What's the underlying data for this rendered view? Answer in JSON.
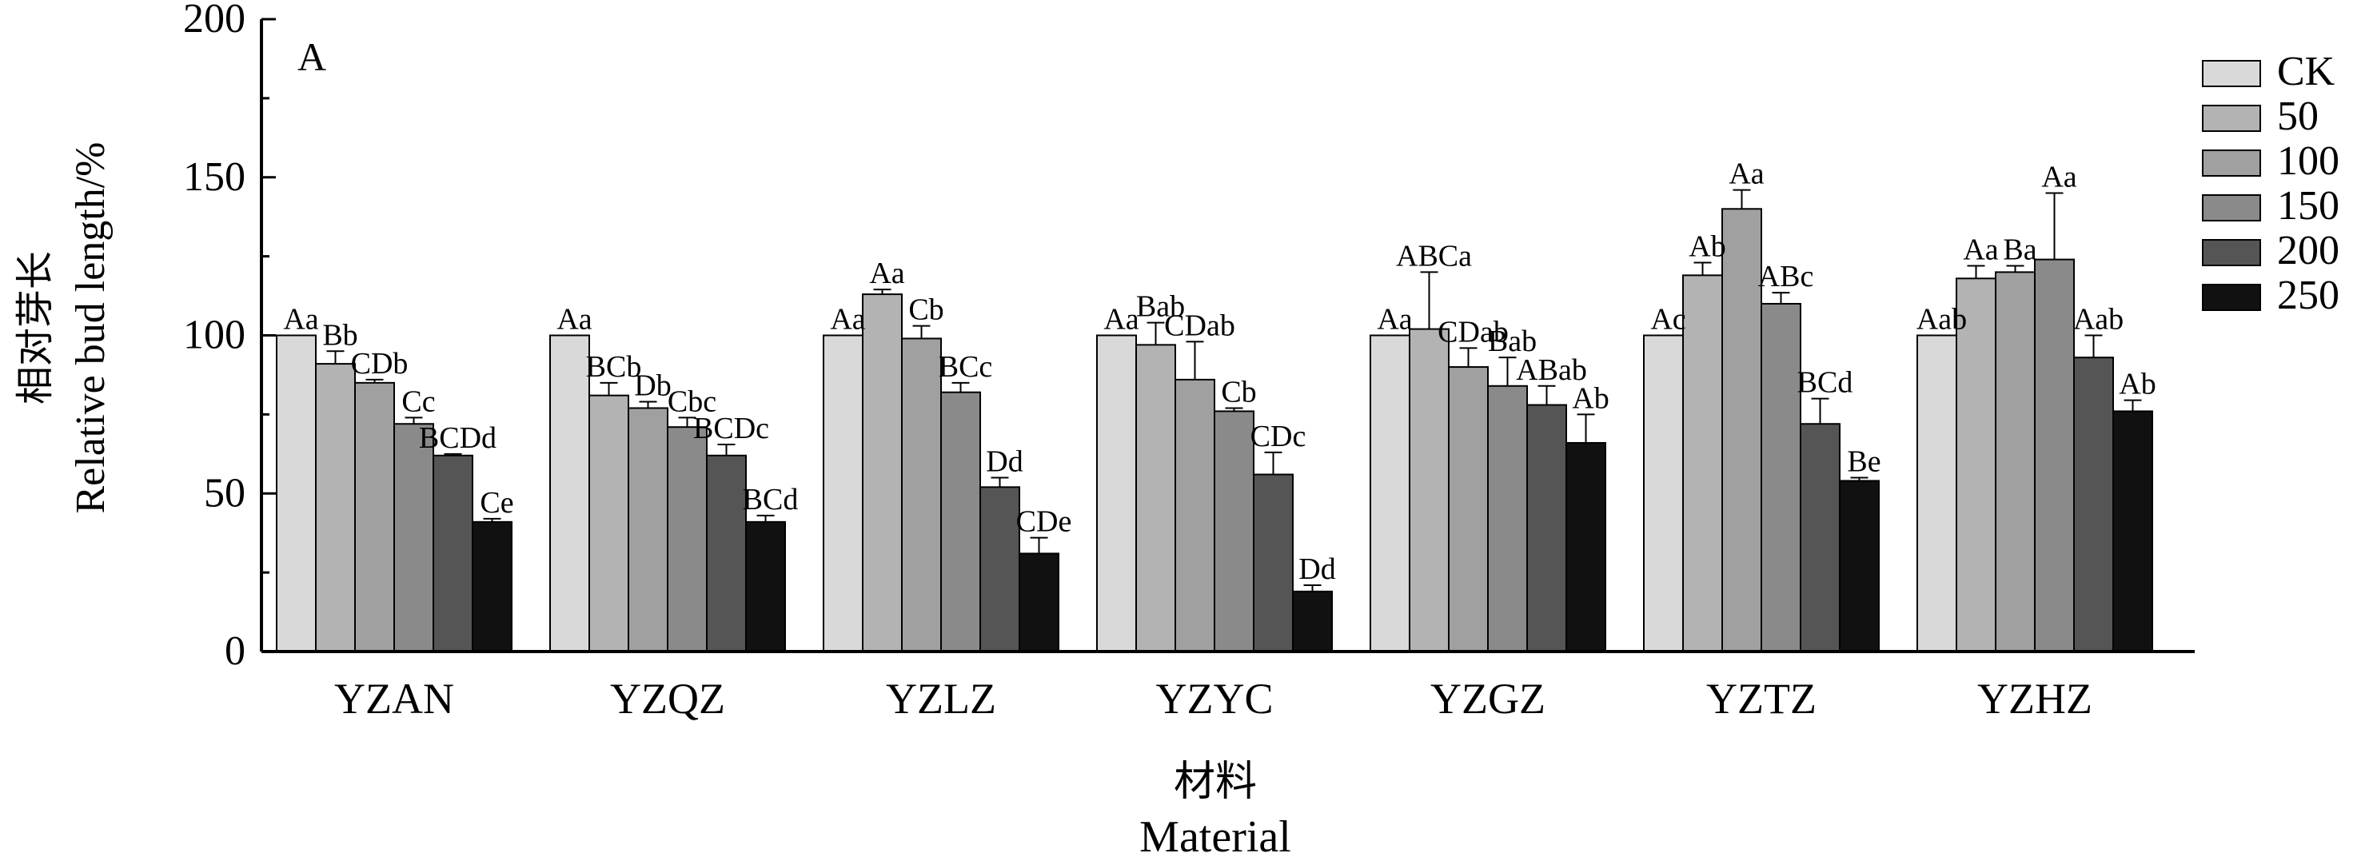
{
  "chart_data": {
    "type": "bar",
    "panel_label": "A",
    "title": "",
    "ylabel_cn": "相对芽长",
    "ylabel_en": "Relative bud length/%",
    "xlabel_cn": "材料",
    "xlabel_en": "Material",
    "ylim": [
      0,
      200
    ],
    "yticks": [
      "0",
      "50",
      "100",
      "150",
      "200"
    ],
    "grid": false,
    "legend_position": "right",
    "categories": [
      "YZAN",
      "YZQZ",
      "YZLZ",
      "YZYC",
      "YZGZ",
      "YZTZ",
      "YZHZ"
    ],
    "series": [
      {
        "name": "CK",
        "color": "#d9d9d9",
        "values": [
          100,
          100,
          100,
          100,
          100,
          100,
          100
        ],
        "errors": [
          0,
          0,
          0,
          0,
          0,
          0,
          0
        ],
        "labels": [
          "Aa",
          "Aa",
          "Aa",
          "Aa",
          "Aa",
          "Ac",
          "Aab"
        ]
      },
      {
        "name": "50",
        "color": "#b3b3b3",
        "values": [
          91,
          81,
          113,
          97,
          102,
          119,
          118
        ],
        "errors": [
          4,
          4,
          1.5,
          7,
          18,
          4,
          4
        ],
        "labels": [
          "Bb",
          "BCb",
          "Aa",
          "Bab",
          "ABCa",
          "Ab",
          "Aa"
        ]
      },
      {
        "name": "100",
        "color": "#a0a0a0",
        "values": [
          85,
          77,
          99,
          86,
          90,
          140,
          120
        ],
        "errors": [
          1,
          2,
          4,
          12,
          6,
          6,
          2
        ],
        "labels": [
          "CDb",
          "Db",
          "Cb",
          "CDab",
          "CDab",
          "Aa",
          "Ba"
        ]
      },
      {
        "name": "150",
        "color": "#8a8a8a",
        "values": [
          72,
          71,
          82,
          76,
          84,
          110,
          124
        ],
        "errors": [
          2,
          3,
          3,
          1,
          9,
          3.5,
          21
        ],
        "labels": [
          "Cc",
          "Cbc",
          "BCc",
          "Cb",
          "Bab",
          "ABc",
          "Aa"
        ]
      },
      {
        "name": "200",
        "color": "#555555",
        "values": [
          62,
          62,
          52,
          56,
          78,
          72,
          93
        ],
        "errors": [
          0.5,
          3.5,
          3,
          7,
          6,
          8,
          7
        ],
        "labels": [
          "BCDd",
          "BCDc",
          "Dd",
          "CDc",
          "ABab",
          "BCd",
          "Aab"
        ]
      },
      {
        "name": "250",
        "color": "#111111",
        "values": [
          41,
          41,
          31,
          19,
          66,
          54,
          76
        ],
        "errors": [
          1,
          2,
          5,
          2,
          9,
          1,
          3.5
        ],
        "labels": [
          "Ce",
          "BCd",
          "CDe",
          "Dd",
          "Ab",
          "Be",
          "Ab"
        ]
      }
    ]
  }
}
